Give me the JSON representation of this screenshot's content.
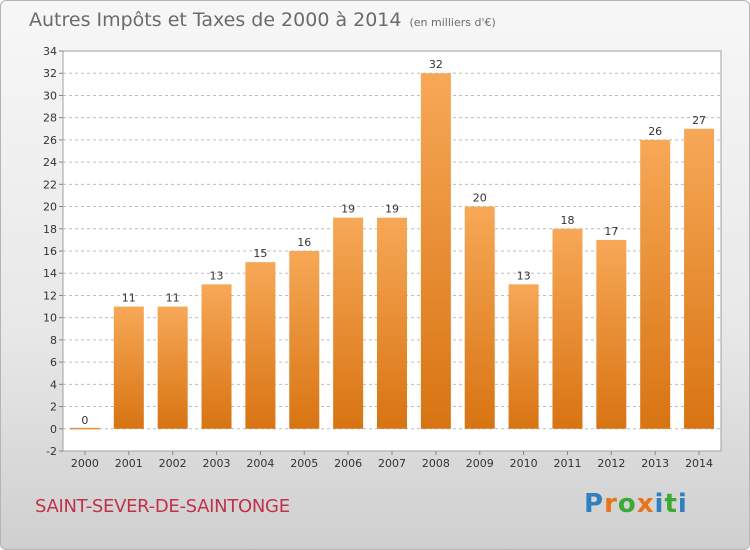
{
  "title": "Autres Impôts et Taxes de 2000 à 2014",
  "subtitle": "(en milliers d'€)",
  "commune": "SAINT-SEVER-DE-SAINTONGE",
  "logo": {
    "letters": [
      "P",
      "r",
      "o",
      "x",
      "i",
      "t",
      "i"
    ],
    "colors": [
      "#2f7fc1",
      "#e8731a",
      "#3aaa35",
      "#e8731a",
      "#2f7fc1",
      "#3aaa35",
      "#2f7fc1"
    ]
  },
  "colors": {
    "bar_light": "#f7a857",
    "bar_dark": "#d87412",
    "grid": "#bdbdbd"
  },
  "chart_data": {
    "type": "bar",
    "categories": [
      "2000",
      "2001",
      "2002",
      "2003",
      "2004",
      "2005",
      "2006",
      "2007",
      "2008",
      "2009",
      "2010",
      "2011",
      "2012",
      "2013",
      "2014"
    ],
    "values": [
      0,
      11,
      11,
      13,
      15,
      16,
      19,
      19,
      32,
      20,
      13,
      18,
      17,
      26,
      27
    ],
    "ylim": [
      -2,
      34
    ],
    "yticks": [
      -2,
      0,
      2,
      4,
      6,
      8,
      10,
      12,
      14,
      16,
      18,
      20,
      22,
      24,
      26,
      28,
      30,
      32,
      34
    ],
    "grid": "horizontal-dashed",
    "legend": "none"
  }
}
